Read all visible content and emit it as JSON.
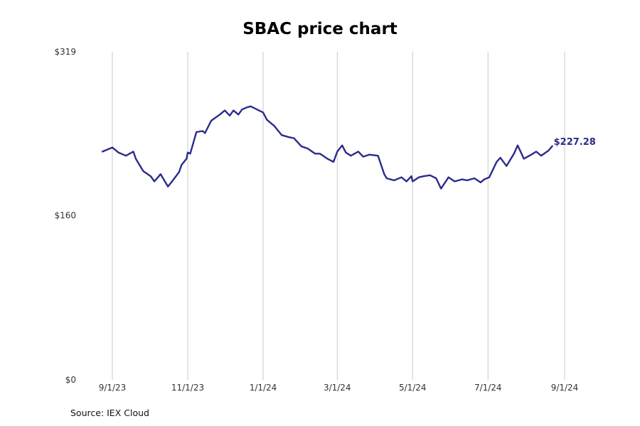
{
  "source_note": "Source: IEX Cloud",
  "colors": {
    "line": "#2b2b8c",
    "grid": "#c8c8c8",
    "text": "#333333"
  },
  "chart_data": {
    "type": "line",
    "title": "SBAC price chart",
    "xlabel": "",
    "ylabel": "",
    "ylim": [
      0,
      319
    ],
    "y_ticks": [
      0,
      160,
      319
    ],
    "y_tick_labels": [
      "$0",
      "$160",
      "$319"
    ],
    "x_ticks": [
      "2023-09-01",
      "2023-11-01",
      "2024-01-01",
      "2024-03-01",
      "2024-05-01",
      "2024-07-01",
      "2024-09-01"
    ],
    "x_tick_labels": [
      "9/1/23",
      "11/1/23",
      "1/1/24",
      "3/1/24",
      "5/1/24",
      "7/1/24",
      "9/1/24"
    ],
    "grid": "vertical",
    "last_value_label": "$227.28",
    "series": [
      {
        "x": [
          "2023-08-24",
          "2023-08-28",
          "2023-09-01",
          "2023-09-06",
          "2023-09-12",
          "2023-09-18",
          "2023-09-20",
          "2023-09-26",
          "2023-10-02",
          "2023-10-05",
          "2023-10-10",
          "2023-10-16",
          "2023-10-20",
          "2023-10-25",
          "2023-10-27",
          "2023-10-31",
          "2023-11-01",
          "2023-11-03",
          "2023-11-08",
          "2023-11-13",
          "2023-11-15",
          "2023-11-20",
          "2023-11-27",
          "2023-12-01",
          "2023-12-05",
          "2023-12-08",
          "2023-12-12",
          "2023-12-15",
          "2023-12-19",
          "2023-12-22",
          "2024-01-01",
          "2024-01-04",
          "2024-01-10",
          "2024-01-16",
          "2024-01-22",
          "2024-01-26",
          "2024-02-01",
          "2024-02-06",
          "2024-02-12",
          "2024-02-16",
          "2024-02-22",
          "2024-02-27",
          "2024-03-01",
          "2024-03-05",
          "2024-03-08",
          "2024-03-12",
          "2024-03-18",
          "2024-03-22",
          "2024-03-27",
          "2024-04-03",
          "2024-04-08",
          "2024-04-10",
          "2024-04-16",
          "2024-04-22",
          "2024-04-26",
          "2024-04-30",
          "2024-05-01",
          "2024-05-06",
          "2024-05-10",
          "2024-05-15",
          "2024-05-20",
          "2024-05-24",
          "2024-05-30",
          "2024-06-04",
          "2024-06-10",
          "2024-06-14",
          "2024-06-20",
          "2024-06-25",
          "2024-06-28",
          "2024-07-02",
          "2024-07-08",
          "2024-07-11",
          "2024-07-16",
          "2024-07-22",
          "2024-07-25",
          "2024-07-30",
          "2024-08-05",
          "2024-08-09",
          "2024-08-13",
          "2024-08-19",
          "2024-08-22"
        ],
        "values": [
          222,
          224,
          226,
          221,
          218,
          222,
          215,
          203,
          198,
          193,
          200,
          188,
          194,
          202,
          209,
          215,
          221,
          220,
          241,
          242,
          240,
          252,
          258,
          262,
          257,
          262,
          258,
          263,
          265,
          266,
          260,
          253,
          247,
          238,
          236,
          235,
          227,
          225,
          220,
          220,
          215,
          212,
          222,
          228,
          221,
          218,
          222,
          217,
          219,
          218,
          200,
          196,
          194,
          197,
          193,
          198,
          193,
          197,
          198,
          199,
          196,
          186,
          197,
          193,
          195,
          194,
          196,
          192,
          195,
          197,
          212,
          216,
          208,
          220,
          228,
          215,
          219,
          222,
          218,
          223,
          227.28
        ]
      }
    ]
  }
}
